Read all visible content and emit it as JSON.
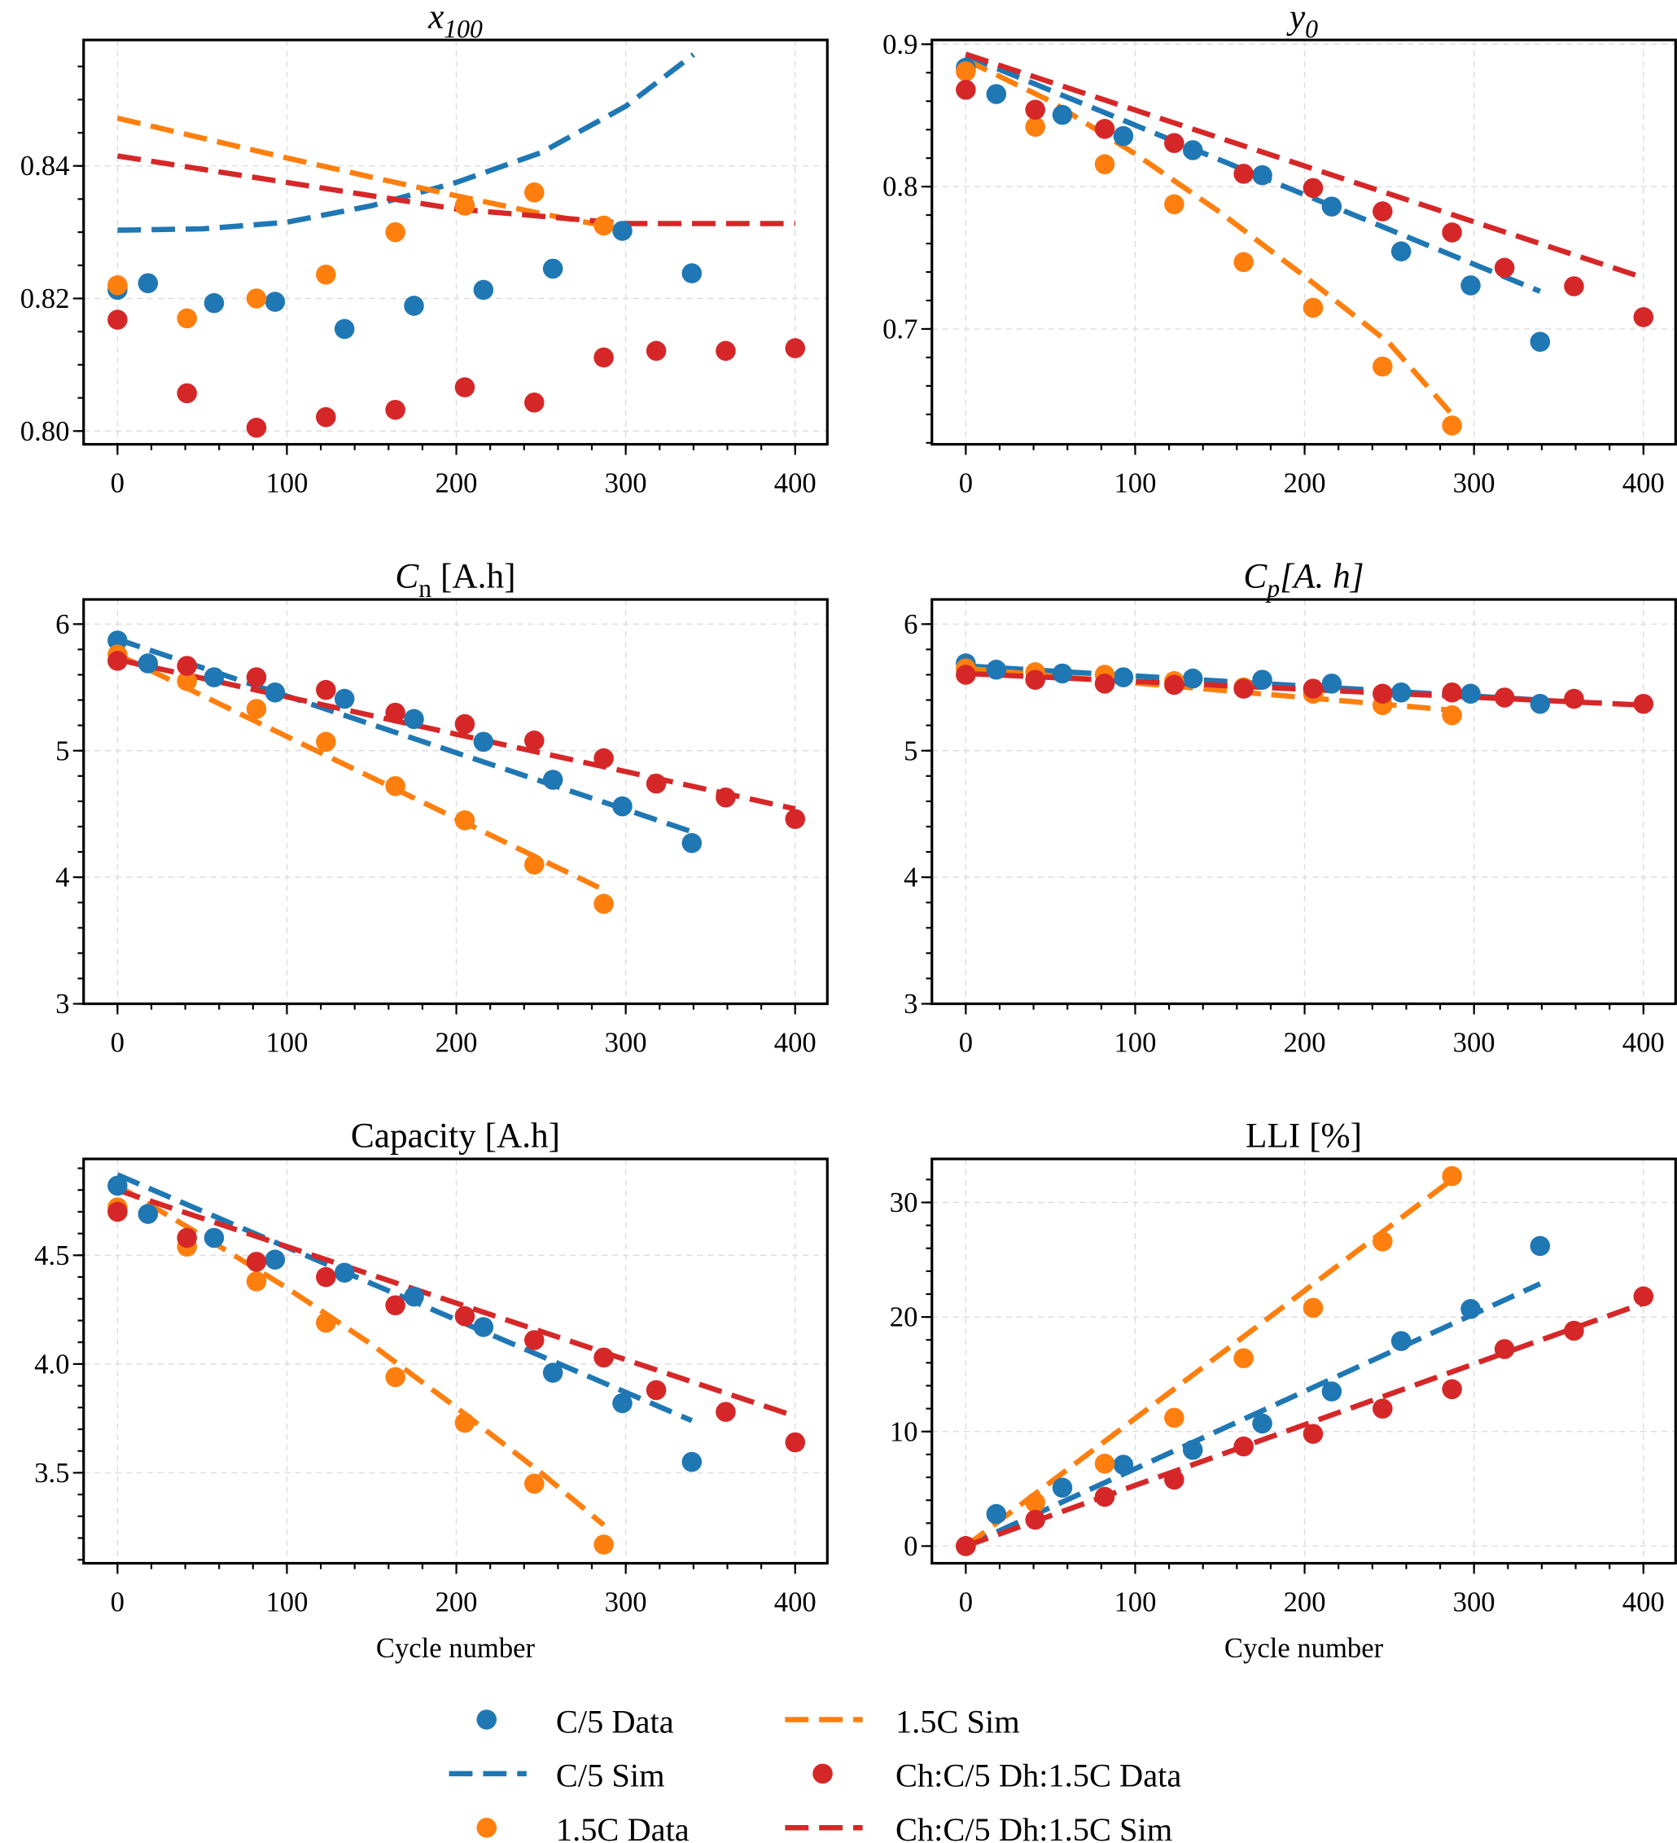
{
  "colors": {
    "c5": "#1f77b4",
    "c15": "#ff7f0e",
    "mix": "#d62728"
  },
  "legend": [
    {
      "key": "c5",
      "kind": "marker",
      "label": "C/5 Data"
    },
    {
      "key": "c5",
      "kind": "line",
      "label": "C/5 Sim"
    },
    {
      "key": "c15",
      "kind": "marker",
      "label": "1.5C Data"
    },
    {
      "key": "c15",
      "kind": "line",
      "label": "1.5C Sim"
    },
    {
      "key": "mix",
      "kind": "marker",
      "label": "Ch:C/5 Dh:1.5C Data"
    },
    {
      "key": "mix",
      "kind": "line",
      "label": "Ch:C/5 Dh:1.5C Sim"
    }
  ],
  "chart_data": [
    {
      "type": "scatter",
      "title": "x",
      "title_sub": "100",
      "title_italic": true,
      "xlabel": "",
      "xlim": [
        -20,
        419
      ],
      "ylim": [
        0.798,
        0.859
      ],
      "yticks": [
        0.8,
        0.82,
        0.84
      ],
      "ytick_labels": [
        "0.80",
        "0.82",
        "0.84"
      ],
      "yminor": 0.005,
      "xticks": [
        0,
        100,
        200,
        300,
        400
      ],
      "grid": true,
      "series": [
        {
          "key": "c5",
          "kind": "data",
          "x": [
            0,
            18,
            57,
            93,
            134,
            175,
            216,
            257,
            298,
            339
          ],
          "y": [
            0.8213,
            0.8223,
            0.8193,
            0.8195,
            0.8154,
            0.8189,
            0.8213,
            0.8245,
            0.8302,
            0.8238
          ]
        },
        {
          "key": "c15",
          "kind": "data",
          "x": [
            0,
            41,
            82,
            123,
            164,
            205,
            246,
            287
          ],
          "y": [
            0.822,
            0.817,
            0.82,
            0.8236,
            0.83,
            0.834,
            0.836,
            0.831
          ]
        },
        {
          "key": "mix",
          "kind": "data",
          "x": [
            0,
            41,
            82,
            123,
            164,
            205,
            246,
            287,
            318,
            359,
            400
          ],
          "y": [
            0.8168,
            0.8057,
            0.8005,
            0.8021,
            0.8032,
            0.8066,
            0.8043,
            0.8111,
            0.8121,
            0.8121,
            0.8125
          ]
        },
        {
          "key": "c5",
          "kind": "sim",
          "x": [
            0,
            50,
            100,
            150,
            200,
            250,
            300,
            340
          ],
          "y": [
            0.8303,
            0.8305,
            0.8315,
            0.834,
            0.8375,
            0.842,
            0.849,
            0.8568
          ]
        },
        {
          "key": "c15",
          "kind": "sim",
          "x": [
            0,
            50,
            100,
            150,
            200,
            250,
            287
          ],
          "y": [
            0.8472,
            0.8442,
            0.8412,
            0.8383,
            0.8355,
            0.8328,
            0.831
          ]
        },
        {
          "key": "mix",
          "kind": "sim",
          "x": [
            0,
            100,
            200,
            300,
            400
          ],
          "y": [
            0.8415,
            0.8375,
            0.8335,
            0.8313,
            0.8313
          ]
        }
      ]
    },
    {
      "type": "scatter",
      "title": "y",
      "title_sub": "0",
      "title_italic": true,
      "xlabel": "",
      "xlim": [
        -20,
        419
      ],
      "ylim": [
        0.619,
        0.903
      ],
      "yticks": [
        0.7,
        0.8,
        0.9
      ],
      "ytick_labels": [
        "0.7",
        "0.8",
        "0.9"
      ],
      "yminor": 0.02,
      "xticks": [
        0,
        100,
        200,
        300,
        400
      ],
      "grid": true,
      "series": [
        {
          "key": "c5",
          "kind": "data",
          "x": [
            0,
            18,
            57,
            93,
            134,
            175,
            216,
            257,
            298,
            339
          ],
          "y": [
            0.8835,
            0.865,
            0.8504,
            0.8355,
            0.8256,
            0.808,
            0.786,
            0.7545,
            0.7306,
            0.691
          ]
        },
        {
          "key": "c15",
          "kind": "data",
          "x": [
            0,
            41,
            82,
            123,
            164,
            205,
            246,
            287
          ],
          "y": [
            0.881,
            0.842,
            0.8157,
            0.7876,
            0.747,
            0.7149,
            0.6736,
            0.6322
          ]
        },
        {
          "key": "mix",
          "kind": "data",
          "x": [
            0,
            41,
            82,
            123,
            164,
            205,
            246,
            287,
            318,
            359,
            400
          ],
          "y": [
            0.868,
            0.854,
            0.8405,
            0.8306,
            0.809,
            0.799,
            0.7826,
            0.7678,
            0.743,
            0.73,
            0.7083
          ]
        },
        {
          "key": "c5",
          "kind": "sim",
          "x": [
            0,
            339
          ],
          "y": [
            0.892,
            0.7264
          ]
        },
        {
          "key": "c15",
          "kind": "sim",
          "x": [
            0,
            50,
            100,
            150,
            200,
            250,
            287
          ],
          "y": [
            0.889,
            0.86,
            0.823,
            0.782,
            0.737,
            0.69,
            0.64
          ]
        },
        {
          "key": "mix",
          "kind": "sim",
          "x": [
            0,
            400
          ],
          "y": [
            0.893,
            0.736
          ]
        }
      ]
    },
    {
      "type": "scatter",
      "title": "C",
      "title_sub": "n",
      "title_suffix": " [A.h]",
      "title_italic": false,
      "xlabel": "",
      "xlim": [
        -20,
        419
      ],
      "ylim": [
        3,
        6.195
      ],
      "yticks": [
        3,
        4,
        5,
        6
      ],
      "ytick_labels": [
        "3",
        "4",
        "5",
        "6"
      ],
      "yminor": 0.2,
      "xticks": [
        0,
        100,
        200,
        300,
        400
      ],
      "grid": true,
      "series": [
        {
          "key": "c5",
          "kind": "data",
          "x": [
            0,
            18,
            57,
            93,
            134,
            175,
            216,
            257,
            298,
            339
          ],
          "y": [
            5.87,
            5.69,
            5.58,
            5.46,
            5.41,
            5.25,
            5.07,
            4.77,
            4.56,
            4.27
          ]
        },
        {
          "key": "c15",
          "kind": "data",
          "x": [
            0,
            41,
            82,
            123,
            164,
            205,
            246,
            287
          ],
          "y": [
            5.76,
            5.55,
            5.33,
            5.07,
            4.72,
            4.45,
            4.1,
            3.79
          ]
        },
        {
          "key": "mix",
          "kind": "data",
          "x": [
            0,
            41,
            82,
            123,
            164,
            205,
            246,
            287,
            318,
            359,
            400
          ],
          "y": [
            5.71,
            5.67,
            5.58,
            5.48,
            5.3,
            5.21,
            5.08,
            4.94,
            4.74,
            4.63,
            4.46
          ]
        },
        {
          "key": "c5",
          "kind": "sim",
          "x": [
            0,
            339
          ],
          "y": [
            5.88,
            4.36
          ]
        },
        {
          "key": "c15",
          "kind": "sim",
          "x": [
            0,
            287
          ],
          "y": [
            5.76,
            3.9
          ]
        },
        {
          "key": "mix",
          "kind": "sim",
          "x": [
            0,
            400
          ],
          "y": [
            5.72,
            4.54
          ]
        }
      ]
    },
    {
      "type": "scatter",
      "title": "C",
      "title_sub": "p",
      "title_suffix": "[A. h]",
      "title_italic": true,
      "xlabel": "",
      "xlim": [
        -20,
        419
      ],
      "ylim": [
        3,
        6.195
      ],
      "yticks": [
        3,
        4,
        5,
        6
      ],
      "ytick_labels": [
        "3",
        "4",
        "5",
        "6"
      ],
      "yminor": 0.2,
      "xticks": [
        0,
        100,
        200,
        300,
        400
      ],
      "grid": true,
      "series": [
        {
          "key": "c5",
          "kind": "data",
          "x": [
            0,
            18,
            57,
            93,
            134,
            175,
            216,
            257,
            298,
            339
          ],
          "y": [
            5.69,
            5.64,
            5.61,
            5.58,
            5.57,
            5.56,
            5.53,
            5.46,
            5.45,
            5.37
          ]
        },
        {
          "key": "c15",
          "kind": "data",
          "x": [
            0,
            41,
            82,
            123,
            164,
            205,
            246,
            287
          ],
          "y": [
            5.65,
            5.62,
            5.6,
            5.55,
            5.5,
            5.45,
            5.36,
            5.28
          ]
        },
        {
          "key": "mix",
          "kind": "data",
          "x": [
            0,
            41,
            82,
            123,
            164,
            205,
            246,
            287,
            318,
            359,
            400
          ],
          "y": [
            5.6,
            5.56,
            5.53,
            5.52,
            5.49,
            5.49,
            5.45,
            5.46,
            5.42,
            5.41,
            5.37
          ]
        },
        {
          "key": "c5",
          "kind": "sim",
          "x": [
            0,
            339
          ],
          "y": [
            5.67,
            5.4
          ]
        },
        {
          "key": "c15",
          "kind": "sim",
          "x": [
            0,
            287
          ],
          "y": [
            5.65,
            5.32
          ]
        },
        {
          "key": "mix",
          "kind": "sim",
          "x": [
            0,
            400
          ],
          "y": [
            5.61,
            5.36
          ]
        }
      ]
    },
    {
      "type": "scatter",
      "title": "Capacity [A.h]",
      "title_italic": false,
      "xlabel": "Cycle number",
      "xlim": [
        -20,
        419
      ],
      "ylim": [
        3.084,
        4.943
      ],
      "yticks": [
        3.5,
        4.0,
        4.5
      ],
      "ytick_labels": [
        "3.5",
        "4.0",
        "4.5"
      ],
      "yminor": 0.1,
      "xticks": [
        0,
        100,
        200,
        300,
        400
      ],
      "grid": true,
      "series": [
        {
          "key": "c5",
          "kind": "data",
          "x": [
            0,
            18,
            57,
            93,
            134,
            175,
            216,
            257,
            298,
            339
          ],
          "y": [
            4.82,
            4.69,
            4.58,
            4.48,
            4.42,
            4.31,
            4.17,
            3.96,
            3.82,
            3.55
          ]
        },
        {
          "key": "c15",
          "kind": "data",
          "x": [
            0,
            41,
            82,
            123,
            164,
            205,
            246,
            287
          ],
          "y": [
            4.72,
            4.54,
            4.38,
            4.19,
            3.94,
            3.73,
            3.45,
            3.17
          ]
        },
        {
          "key": "mix",
          "kind": "data",
          "x": [
            0,
            41,
            82,
            123,
            164,
            205,
            246,
            287,
            318,
            359,
            400
          ],
          "y": [
            4.7,
            4.58,
            4.47,
            4.4,
            4.27,
            4.22,
            4.11,
            4.03,
            3.88,
            3.78,
            3.64
          ]
        },
        {
          "key": "c5",
          "kind": "sim",
          "x": [
            0,
            339
          ],
          "y": [
            4.87,
            3.74
          ]
        },
        {
          "key": "c15",
          "kind": "sim",
          "x": [
            0,
            50,
            100,
            150,
            200,
            250,
            287
          ],
          "y": [
            4.82,
            4.59,
            4.35,
            4.09,
            3.8,
            3.5,
            3.26
          ]
        },
        {
          "key": "mix",
          "kind": "sim",
          "x": [
            0,
            400
          ],
          "y": [
            4.8,
            3.76
          ]
        }
      ]
    },
    {
      "type": "scatter",
      "title": "LLI [%]",
      "title_italic": false,
      "xlabel": "Cycle number",
      "xlim": [
        -20,
        419
      ],
      "ylim": [
        -1.5,
        33.8
      ],
      "yticks": [
        0,
        10,
        20,
        30
      ],
      "ytick_labels": [
        "0",
        "10",
        "20",
        "30"
      ],
      "yminor": 2,
      "xticks": [
        0,
        100,
        200,
        300,
        400
      ],
      "grid": true,
      "series": [
        {
          "key": "c5",
          "kind": "data",
          "x": [
            0,
            18,
            57,
            93,
            134,
            175,
            216,
            257,
            298,
            339
          ],
          "y": [
            0,
            2.8,
            5.1,
            7.1,
            8.4,
            10.7,
            13.5,
            17.9,
            20.7,
            26.2
          ]
        },
        {
          "key": "c15",
          "kind": "data",
          "x": [
            0,
            41,
            82,
            123,
            164,
            205,
            246,
            287
          ],
          "y": [
            0,
            3.8,
            7.2,
            11.2,
            16.4,
            20.8,
            26.6,
            32.3
          ]
        },
        {
          "key": "mix",
          "kind": "data",
          "x": [
            0,
            41,
            82,
            123,
            164,
            205,
            246,
            287,
            318,
            359,
            400
          ],
          "y": [
            0,
            2.3,
            4.3,
            5.8,
            8.7,
            9.8,
            12,
            13.7,
            17.2,
            18.8,
            21.8
          ]
        },
        {
          "key": "c5",
          "kind": "sim",
          "x": [
            0,
            339
          ],
          "y": [
            0,
            22.9
          ]
        },
        {
          "key": "c15",
          "kind": "sim",
          "x": [
            0,
            287
          ],
          "y": [
            0,
            32
          ]
        },
        {
          "key": "mix",
          "kind": "sim",
          "x": [
            0,
            400
          ],
          "y": [
            0,
            21.2
          ]
        }
      ]
    }
  ]
}
